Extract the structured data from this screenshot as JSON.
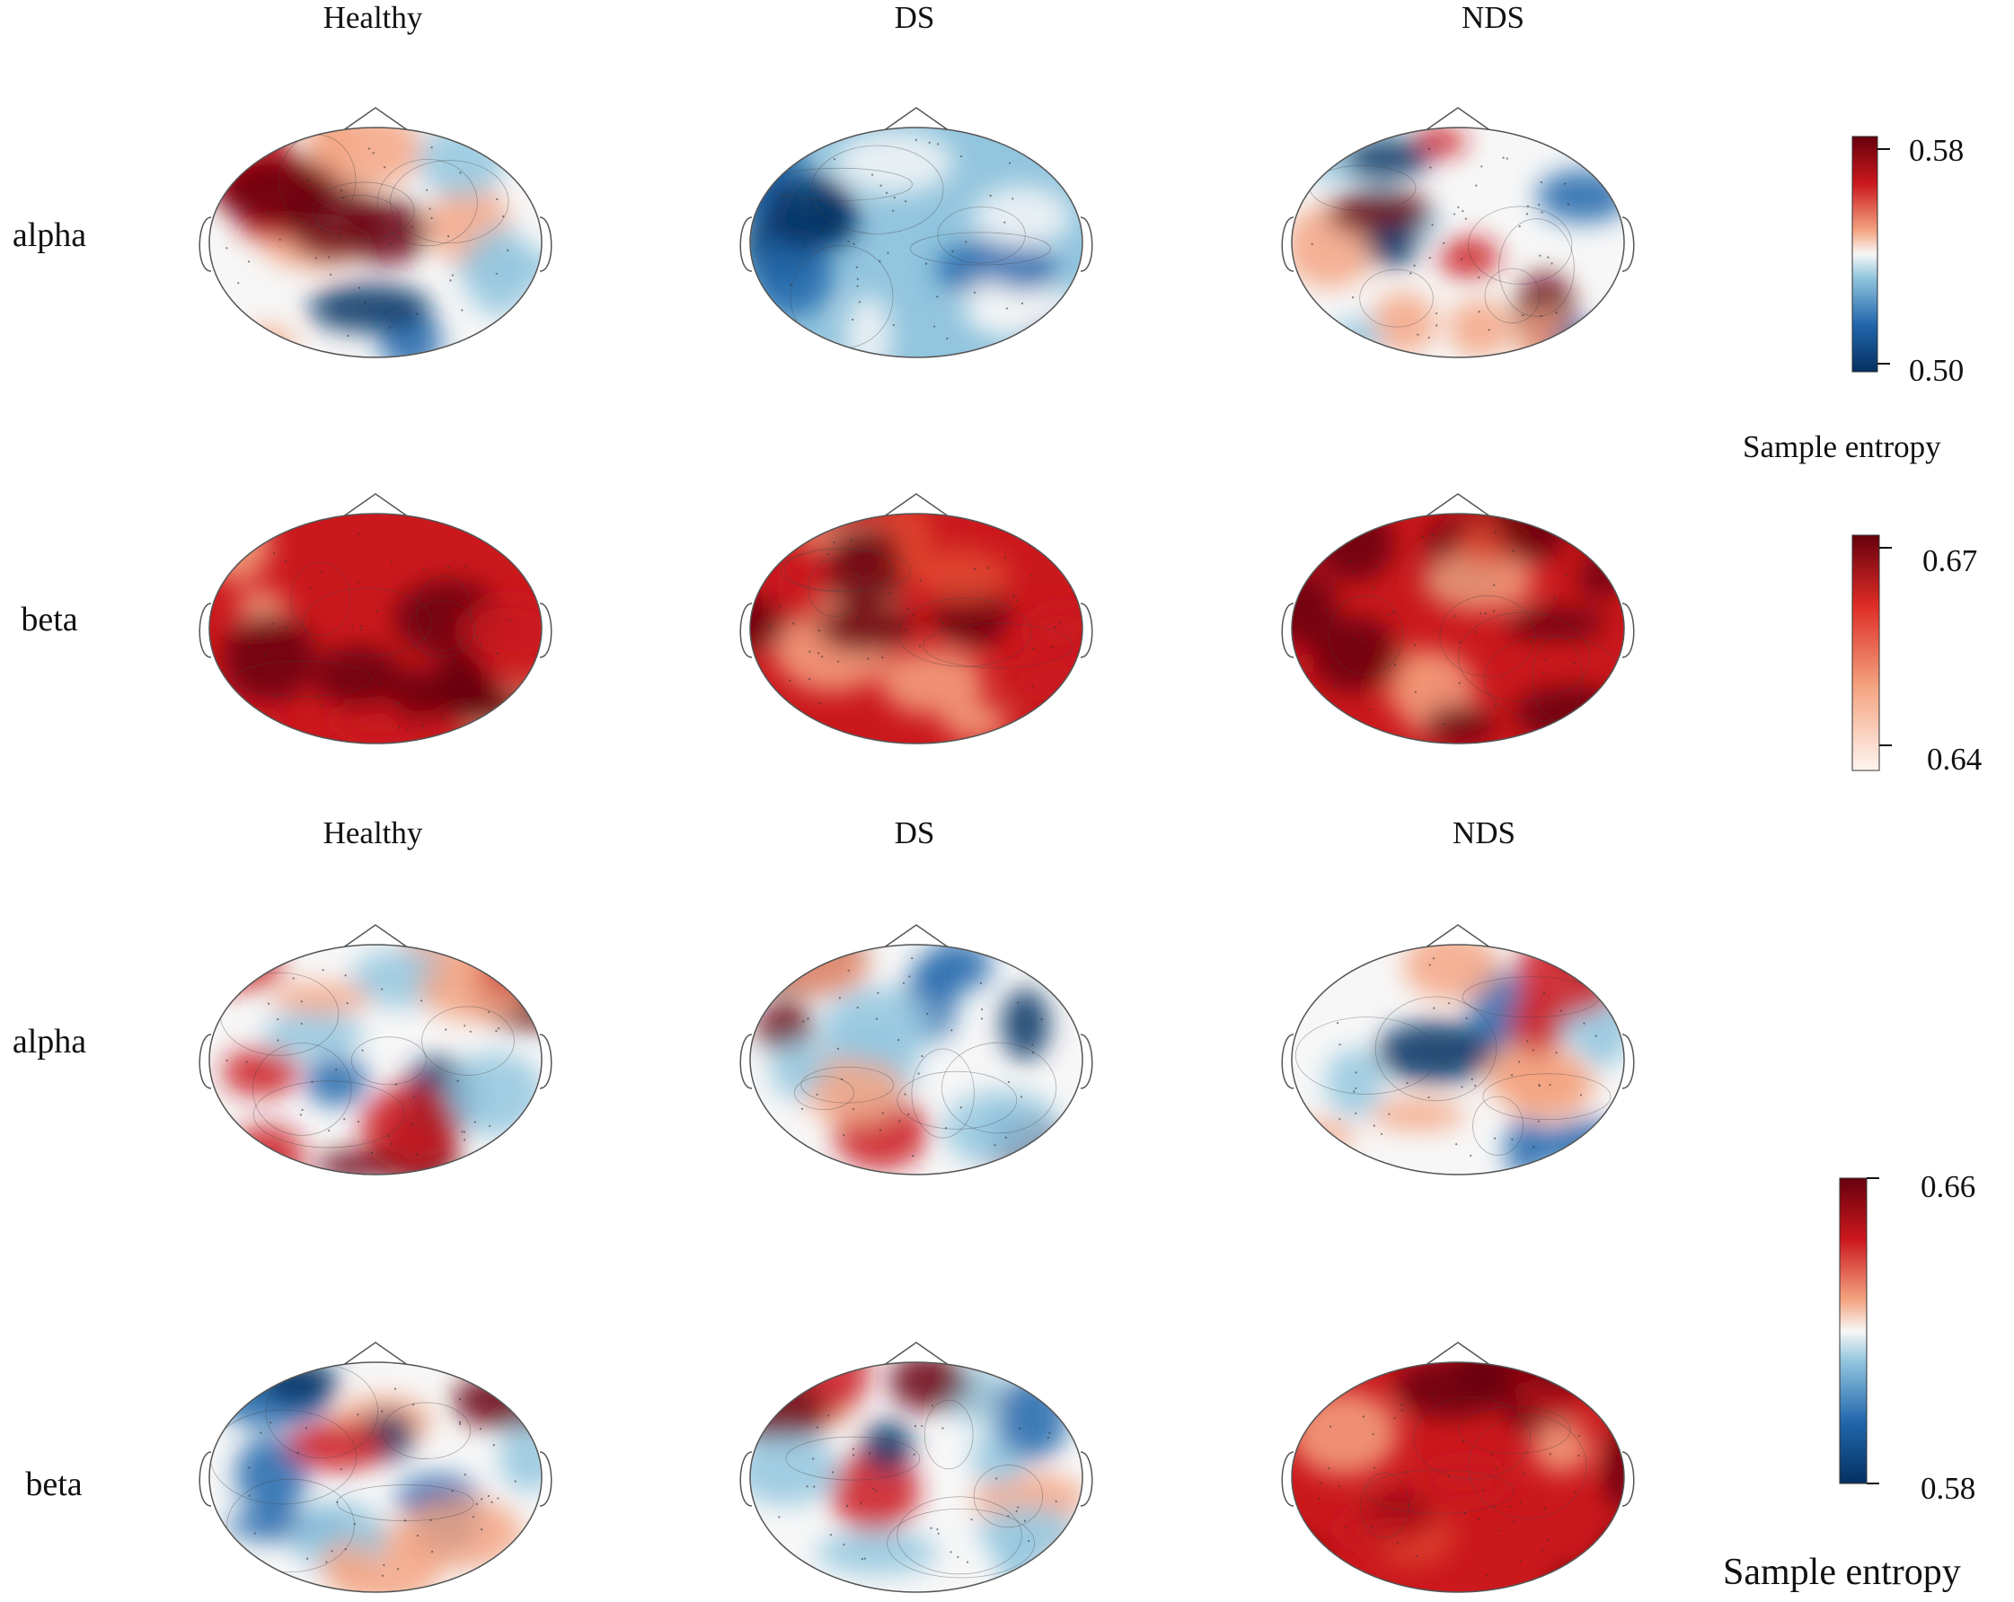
{
  "panels": [
    {
      "columns": [
        "Healthy",
        "DS",
        "NDS"
      ],
      "rows": [
        {
          "band": "alpha",
          "maps": [
            "mixed",
            "blue",
            "mixed"
          ]
        },
        {
          "band": "beta",
          "maps": [
            "red",
            "red",
            "red"
          ]
        }
      ],
      "colorbars": [
        {
          "min_label": "0.50",
          "max_label": "0.58",
          "scheme": "diverging",
          "title": "Sample entropy"
        },
        {
          "min_label": "0.64",
          "max_label": "0.67",
          "scheme": "reds"
        }
      ]
    },
    {
      "columns": [
        "Healthy",
        "DS",
        "NDS"
      ],
      "rows": [
        {
          "band": "alpha",
          "maps": [
            "mixed",
            "mixed",
            "mixed"
          ]
        },
        {
          "band": "beta",
          "maps": [
            "mixed",
            "mixed",
            "red"
          ]
        }
      ],
      "colorbars": [
        {
          "min_label": "0.58",
          "max_label": "0.66",
          "scheme": "diverging",
          "title": "Sample entropy"
        }
      ]
    }
  ],
  "colors": {
    "dark_red": "#67000d",
    "red": "#cb181d",
    "light_red": "#f4a582",
    "white": "#f7f7f7",
    "light_blue": "#92c5de",
    "blue": "#2166ac",
    "dark_blue": "#053061",
    "outline": "#555555"
  }
}
